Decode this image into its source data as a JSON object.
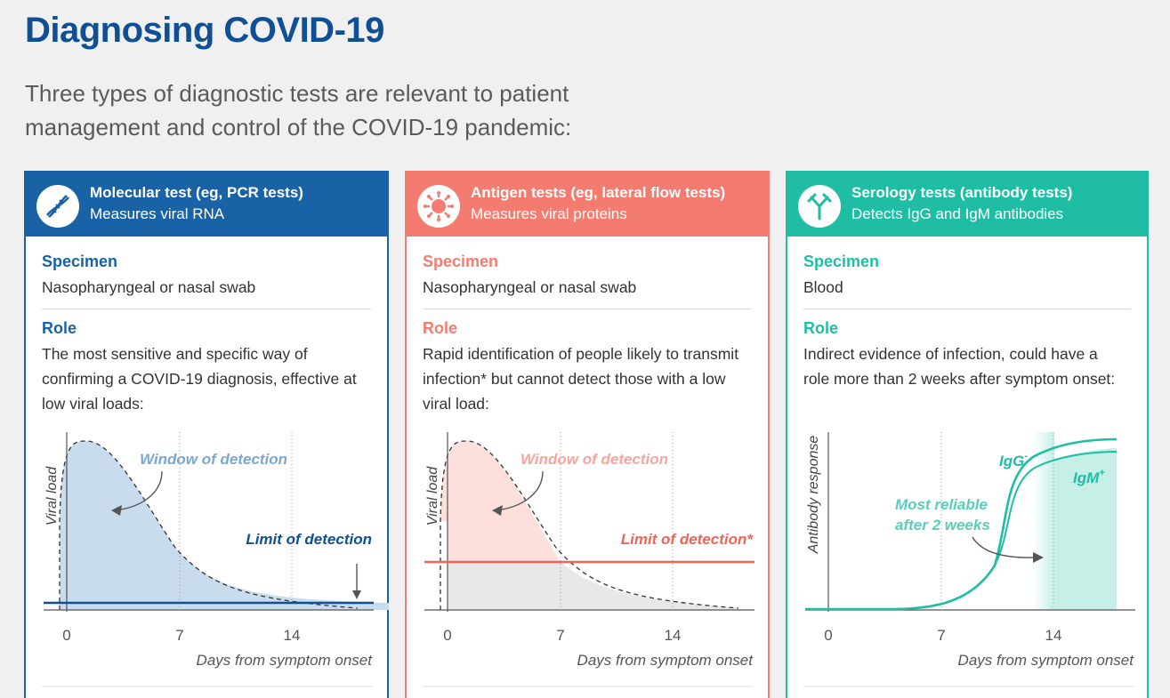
{
  "page": {
    "title": "Diagnosing COVID-19",
    "subtitle": "Three types of diagnostic tests are relevant to patient management and control of the COVID-19 pandemic:"
  },
  "colors": {
    "molecular": "#1a62a6",
    "antigen": "#f47b6f",
    "serology": "#1fbea4",
    "title": "#0f4f96"
  },
  "cards": [
    {
      "name": "Molecular test (eg, PCR tests)",
      "description": "Measures viral RNA",
      "icon": "dna-icon",
      "specimen_label": "Specimen",
      "specimen": "Nasopharyngeal or nasal swab",
      "role_label": "Role",
      "role": "The most sensitive and specific way of confirming a COVID-19 diagnosis, effective at low viral loads:",
      "chart": {
        "ylabel": "Viral load",
        "xlabel": "Days from symptom onset",
        "ticks": [
          "0",
          "7",
          "14"
        ],
        "window_label": "Window of detection",
        "limit_label": "Limit of detection"
      }
    },
    {
      "name": "Antigen tests (eg, lateral flow tests)",
      "description": "Measures viral proteins",
      "icon": "virus-icon",
      "specimen_label": "Specimen",
      "specimen": "Nasopharyngeal or nasal swab",
      "role_label": "Role",
      "role": "Rapid identification of people likely to transmit infection* but cannot detect those with a low viral load:",
      "chart": {
        "ylabel": "Viral load",
        "xlabel": "Days from symptom onset",
        "ticks": [
          "0",
          "7",
          "14"
        ],
        "window_label": "Window of detection",
        "limit_label": "Limit of detection*"
      }
    },
    {
      "name": "Serology tests (antibody tests)",
      "description": "Detects IgG and IgM antibodies",
      "icon": "antibody-icon",
      "specimen_label": "Specimen",
      "specimen": "Blood",
      "role_label": "Role",
      "role": "Indirect evidence of infection, could have a role more than 2 weeks after symptom onset:",
      "chart": {
        "ylabel": "Antibody response",
        "xlabel": "Days from symptom onset",
        "ticks": [
          "0",
          "7",
          "14"
        ],
        "igg_label": "IgG",
        "igg_sup": "-",
        "igm_label": "IgM",
        "igm_sup": "+",
        "reliable_line1": "Most reliable",
        "reliable_line2": "after 2 weeks"
      }
    }
  ]
}
